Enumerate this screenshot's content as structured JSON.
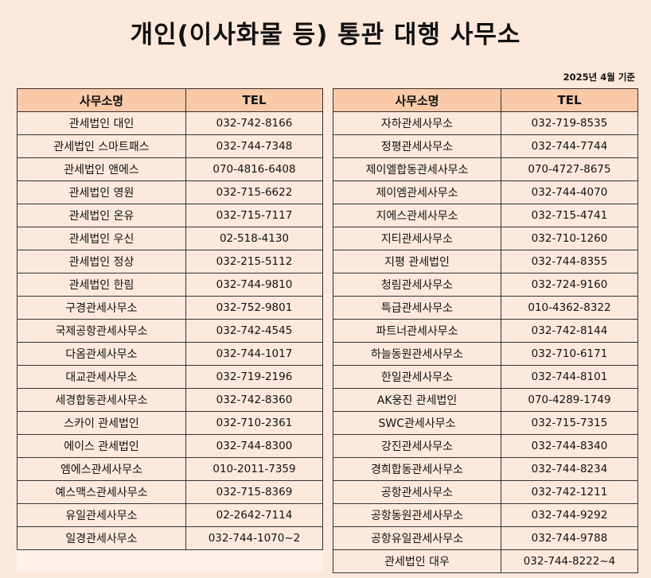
{
  "title": "개인(이사화물 등) 통관 대행 사무소",
  "date": "2025년 4월 기준",
  "columns": {
    "name": "사무소명",
    "tel": "TEL"
  },
  "left": [
    {
      "name": "관세법인 대인",
      "tel": "032-742-8166"
    },
    {
      "name": "관세법인 스마트패스",
      "tel": "032-744-7348"
    },
    {
      "name": "관세법인 앤에스",
      "tel": "070-4816-6408"
    },
    {
      "name": "관세법인 영원",
      "tel": "032-715-6622"
    },
    {
      "name": "관세법인 온유",
      "tel": "032-715-7117"
    },
    {
      "name": "관세법인 우신",
      "tel": "02-518-4130"
    },
    {
      "name": "관세법인 정상",
      "tel": "032-215-5112"
    },
    {
      "name": "관세법인 한림",
      "tel": "032-744-9810"
    },
    {
      "name": "구경관세사무소",
      "tel": "032-752-9801"
    },
    {
      "name": "국제공항관세사무소",
      "tel": "032-742-4545"
    },
    {
      "name": "다옴관세사무소",
      "tel": "032-744-1017"
    },
    {
      "name": "대교관세사무소",
      "tel": "032-719-2196"
    },
    {
      "name": "세경합동관세사무소",
      "tel": "032-742-8360"
    },
    {
      "name": "스카이 관세법인",
      "tel": "032-710-2361"
    },
    {
      "name": "에이스 관세법인",
      "tel": "032-744-8300"
    },
    {
      "name": "엠에스관세사무소",
      "tel": "010-2011-7359"
    },
    {
      "name": "예스맥스관세사무소",
      "tel": "032-715-8369"
    },
    {
      "name": "유일관세사무소",
      "tel": "02-2642-7114"
    },
    {
      "name": "일경관세사무소",
      "tel": "032-744-1070~2"
    }
  ],
  "right": [
    {
      "name": "자하관세사무소",
      "tel": "032-719-8535"
    },
    {
      "name": "정평관세사무소",
      "tel": "032-744-7744"
    },
    {
      "name": "제이엘합동관세사무소",
      "tel": "070-4727-8675"
    },
    {
      "name": "제이엠관세사무소",
      "tel": "032-744-4070"
    },
    {
      "name": "지에스관세사무소",
      "tel": "032-715-4741"
    },
    {
      "name": "지티관세사무소",
      "tel": "032-710-1260"
    },
    {
      "name": "지평 관세법인",
      "tel": "032-744-8355"
    },
    {
      "name": "청림관세사무소",
      "tel": "032-724-9160"
    },
    {
      "name": "특급관세사무소",
      "tel": "010-4362-8322"
    },
    {
      "name": "파트너관세사무소",
      "tel": "032-742-8144"
    },
    {
      "name": "하늘동원관세사무소",
      "tel": "032-710-6171"
    },
    {
      "name": "한일관세사무소",
      "tel": "032-744-8101"
    },
    {
      "name": "AK웅진 관세법인",
      "tel": "070-4289-1749"
    },
    {
      "name": "SWC관세사무소",
      "tel": "032-715-7315"
    },
    {
      "name": "강진관세사무소",
      "tel": "032-744-8340"
    },
    {
      "name": "경희합동관세사무소",
      "tel": "032-744-8234"
    },
    {
      "name": "공항관세사무소",
      "tel": "032-742-1211"
    },
    {
      "name": "공항동원관세사무소",
      "tel": "032-744-9292"
    },
    {
      "name": "공항유일관세사무소",
      "tel": "032-744-9788"
    },
    {
      "name": "관세법인 대우",
      "tel": "032-744-8222~4"
    }
  ]
}
